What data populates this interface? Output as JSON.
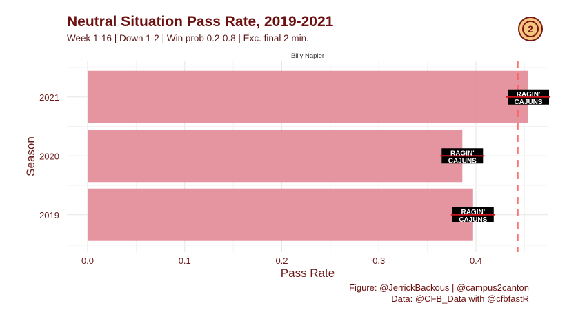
{
  "title": "Neutral Situation Pass Rate, 2019-2021",
  "subtitle": "Week 1-16 | Down 1-2 | Win prob 0.2-0.8 | Exc. final 2 min.",
  "caption_line1": "Figure: @JerrickBackous | @campus2canton",
  "caption_line2": "Data: @CFB_Data with @cfbfastR",
  "logo_icon": "campus2canton-logo",
  "chart_data": {
    "type": "bar",
    "orientation": "horizontal",
    "facet_label": "Billy Napier",
    "categories": [
      "2021",
      "2020",
      "2019"
    ],
    "values": [
      0.454,
      0.386,
      0.397
    ],
    "xlabel": "Pass Rate",
    "ylabel": "Season",
    "xlim": [
      0,
      0.46
    ],
    "xticks": [
      "0.0",
      "0.1",
      "0.2",
      "0.3",
      "0.4"
    ],
    "reference_line": 0.443,
    "bar_color": "#e48f9a",
    "line_color": "#ff5a5a",
    "point_marker": "RAGIN' CAJUNS logo",
    "logo_text": [
      "RAGIN'",
      "CAJUNS"
    ],
    "grid": true
  }
}
